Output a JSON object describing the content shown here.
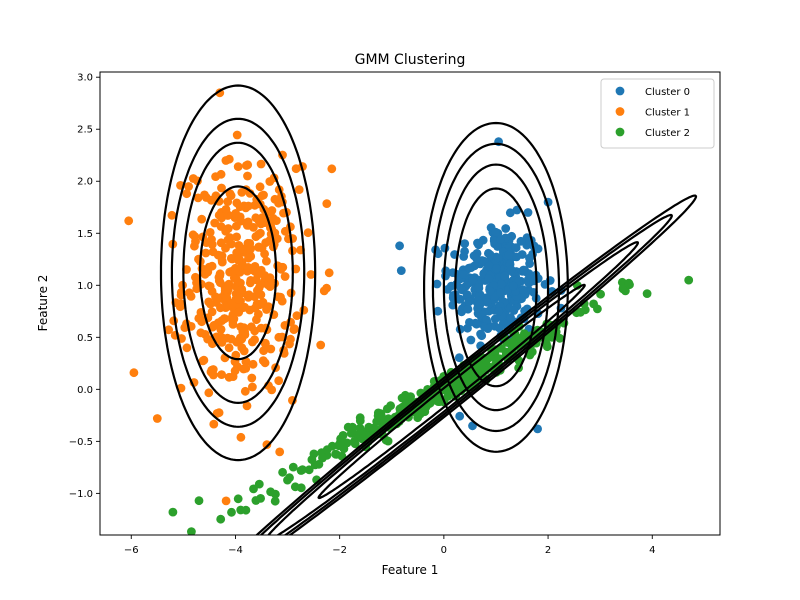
{
  "chart_data": {
    "type": "scatter",
    "title": "GMM Clustering",
    "xlabel": "Feature 1",
    "ylabel": "Feature 2",
    "xlim": [
      -6.6,
      5.3
    ],
    "ylim": [
      -1.4,
      3.05
    ],
    "xticks": [
      -6,
      -4,
      -2,
      0,
      2,
      4
    ],
    "yticks": [
      -1.0,
      -0.5,
      0.0,
      0.5,
      1.0,
      1.5,
      2.0,
      2.5,
      3.0
    ],
    "xtick_labels": [
      "−6",
      "−4",
      "−2",
      "0",
      "2",
      "4"
    ],
    "ytick_labels": [
      "−1.0",
      "−0.5",
      "0.0",
      "0.5",
      "1.0",
      "1.5",
      "2.0",
      "2.5",
      "3.0"
    ],
    "grid": false,
    "legend_position": "top-right",
    "series": [
      {
        "name": "Cluster 0",
        "color": "#1f77b4",
        "center": [
          1.0,
          1.0
        ],
        "std": [
          0.45,
          0.3
        ],
        "corr": 0,
        "n": 300,
        "extra_points": [
          [
            -0.85,
            1.38
          ],
          [
            1.05,
            2.38
          ],
          [
            0.55,
            -0.35
          ],
          [
            2.0,
            1.8
          ],
          [
            1.8,
            -0.38
          ],
          [
            2.25,
            0.95
          ]
        ]
      },
      {
        "name": "Cluster 1",
        "color": "#ff7f0e",
        "center": [
          -3.9,
          1.05
        ],
        "std": [
          0.55,
          0.55
        ],
        "corr": 0,
        "n": 400,
        "extra_points": [
          [
            -6.05,
            1.62
          ],
          [
            -5.95,
            0.16
          ],
          [
            -4.3,
            2.85
          ],
          [
            -2.2,
            1.12
          ],
          [
            -2.15,
            2.12
          ],
          [
            -5.5,
            -0.28
          ]
        ]
      },
      {
        "name": "Cluster 2",
        "color": "#2ca02c",
        "center": [
          0.0,
          0.0
        ],
        "std": [
          1.55,
          0.45
        ],
        "corr": 0.985,
        "n": 350,
        "extra_points": [
          [
            -5.2,
            -1.18
          ],
          [
            -4.7,
            -1.07
          ],
          [
            4.7,
            1.05
          ],
          [
            3.55,
            1.02
          ],
          [
            -3.9,
            -1.16
          ],
          [
            3.9,
            0.92
          ]
        ]
      }
    ],
    "contours": [
      {
        "series": "Cluster 0",
        "center": [
          1.0,
          0.98
        ],
        "semi_axes": [
          [
            0.95,
            0.78
          ],
          [
            1.18,
            1.0
          ],
          [
            1.38,
            1.21
          ],
          [
            1.58,
            1.38
          ]
        ],
        "angle_deg": 90
      },
      {
        "series": "Cluster 1",
        "center": [
          -3.95,
          1.12
        ],
        "semi_axes": [
          [
            0.83,
            0.73
          ],
          [
            1.25,
            1.05
          ],
          [
            1.48,
            1.27
          ],
          [
            1.8,
            1.48
          ]
        ],
        "angle_deg": 90
      },
      {
        "series": "Cluster 2",
        "center": [
          0.15,
          -0.02
        ],
        "semi_axes": [
          [
            2.75,
            0.085
          ],
          [
            3.85,
            0.125
          ],
          [
            4.55,
            0.15
          ],
          [
            5.05,
            0.175
          ]
        ],
        "angle_deg": 21.8
      }
    ]
  }
}
